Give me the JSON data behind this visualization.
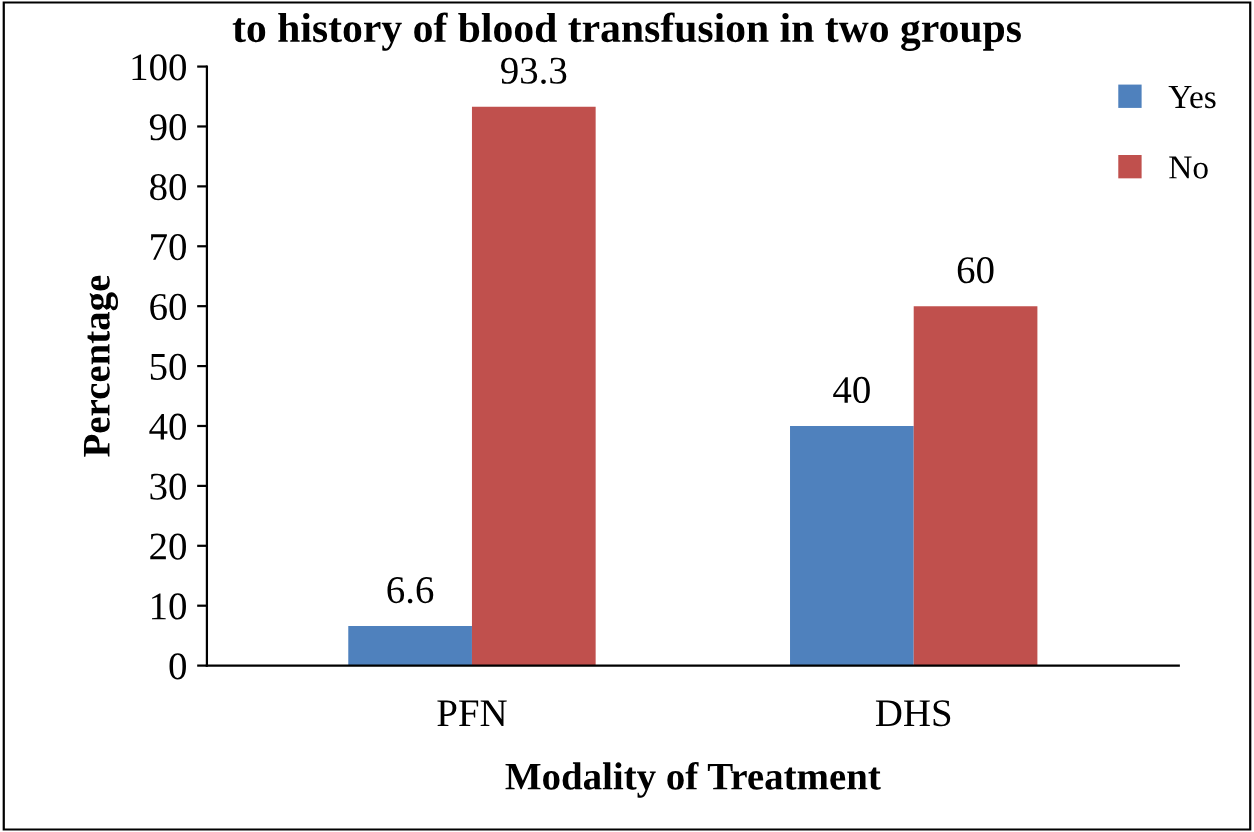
{
  "chart_data": {
    "type": "bar",
    "title": "to history of blood transfusion in two groups",
    "xlabel": "Modality of Treatment",
    "ylabel": "Percentage",
    "categories": [
      "PFN",
      "DHS"
    ],
    "series": [
      {
        "name": "Yes",
        "color": "#4f81bd",
        "values": [
          6.6,
          40
        ]
      },
      {
        "name": "No",
        "color": "#c0504d",
        "values": [
          93.3,
          60
        ]
      }
    ],
    "ylim": [
      0,
      100
    ],
    "yticks": [
      0,
      10,
      20,
      30,
      40,
      50,
      60,
      70,
      80,
      90,
      100
    ],
    "grid": false,
    "legend": "top right",
    "data_labels": true
  }
}
